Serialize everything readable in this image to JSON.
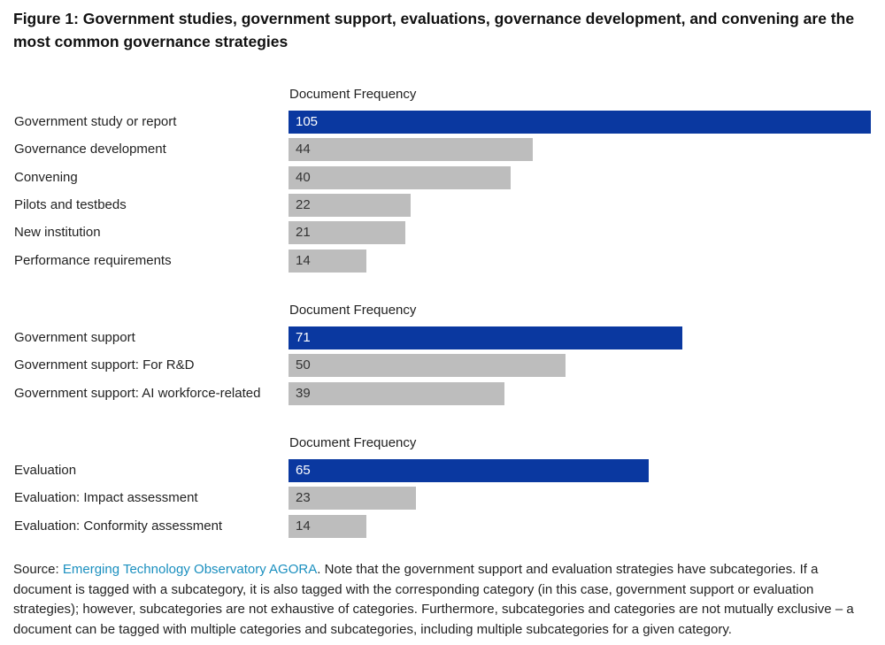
{
  "title": "Figure 1: Government studies, government support, evaluations, governance development, and convening are the most common governance strategies",
  "colors": {
    "highlight": "#0a38a0",
    "default": "#bdbdbd",
    "highlight_text": "#ffffff",
    "default_text": "#333333",
    "link": "#1a8fbf"
  },
  "chart_data": [
    {
      "type": "bar",
      "orientation": "horizontal",
      "xlabel": "Document Frequency",
      "xlim": [
        0,
        105
      ],
      "categories": [
        "Government study or report",
        "Governance development",
        "Convening",
        "Pilots and testbeds",
        "New institution",
        "Performance requirements"
      ],
      "values": [
        105,
        44,
        40,
        22,
        21,
        14
      ],
      "highlight_index": 0
    },
    {
      "type": "bar",
      "orientation": "horizontal",
      "xlabel": "Document Frequency",
      "xlim": [
        0,
        105
      ],
      "categories": [
        "Government support",
        "Government support: For R&D",
        "Government support: AI workforce-related"
      ],
      "values": [
        71,
        50,
        39
      ],
      "highlight_index": 0
    },
    {
      "type": "bar",
      "orientation": "horizontal",
      "xlabel": "Document Frequency",
      "xlim": [
        0,
        105
      ],
      "categories": [
        "Evaluation",
        "Evaluation: Impact assessment",
        "Evaluation: Conformity assessment"
      ],
      "values": [
        65,
        23,
        14
      ],
      "highlight_index": 0
    }
  ],
  "source": {
    "prefix": "Source: ",
    "link_text": "Emerging Technology Observatory AGORA",
    "note": ". Note that the government support and evaluation strategies have subcategories. If a document is tagged with a subcategory, it is also tagged with the corresponding category (in this case, government support or evaluation strategies); however, subcategories are not exhaustive of categories. Furthermore, subcategories and categories are not mutually exclusive – a document can be tagged with multiple categories and subcategories, including multiple subcategories for a given category."
  }
}
